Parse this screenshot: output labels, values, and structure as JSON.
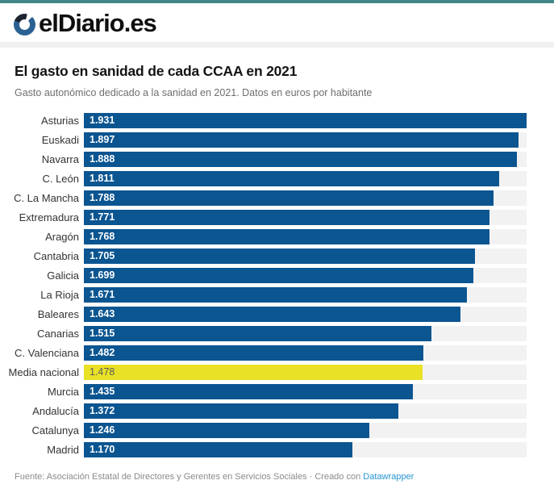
{
  "header": {
    "logo_text": "elDiario.es"
  },
  "title": "El gasto en sanidad de cada CCAA en 2021",
  "subtitle": "Gasto autonómico dedicado a la sanidad en 2021. Datos en euros por habitante",
  "footer": {
    "source": "Fuente: Asociación Estatal de Directores y Gerentes en Servicios Sociales · Creado con",
    "link": "Datawrapper"
  },
  "chart_data": {
    "type": "bar",
    "orientation": "horizontal",
    "title": "El gasto en sanidad de cada CCAA en 2021",
    "subtitle": "Gasto autonómico dedicado a la sanidad en 2021. Datos en euros por habitante",
    "unit": "euros por habitante",
    "categories": [
      "Asturias",
      "Euskadi",
      "Navarra",
      "C. León",
      "C. La Mancha",
      "Extremadura",
      "Aragón",
      "Cantabria",
      "Galicia",
      "La Rioja",
      "Baleares",
      "Canarias",
      "C. Valenciana",
      "Media nacional",
      "Murcia",
      "Andalucía",
      "Catalunya",
      "Madrid"
    ],
    "values": [
      1931,
      1897,
      1888,
      1811,
      1788,
      1771,
      1768,
      1705,
      1699,
      1671,
      1643,
      1515,
      1482,
      1478,
      1435,
      1372,
      1246,
      1170
    ],
    "value_labels": [
      "1.931",
      "1.897",
      "1.888",
      "1.811",
      "1.788",
      "1.771",
      "1.768",
      "1.705",
      "1.699",
      "1.671",
      "1.643",
      "1.515",
      "1.482",
      "1.478",
      "1.435",
      "1.372",
      "1.246",
      "1.170"
    ],
    "highlight_index": 13,
    "highlight_category": "Media nacional",
    "xlim": [
      0,
      1931
    ],
    "grid": false,
    "legend": "none",
    "colors": {
      "bar": "#0b5591",
      "highlight": "#e9e125",
      "track": "#f2f2f2",
      "accent_top": "#43868a",
      "link": "#2494d1"
    }
  }
}
